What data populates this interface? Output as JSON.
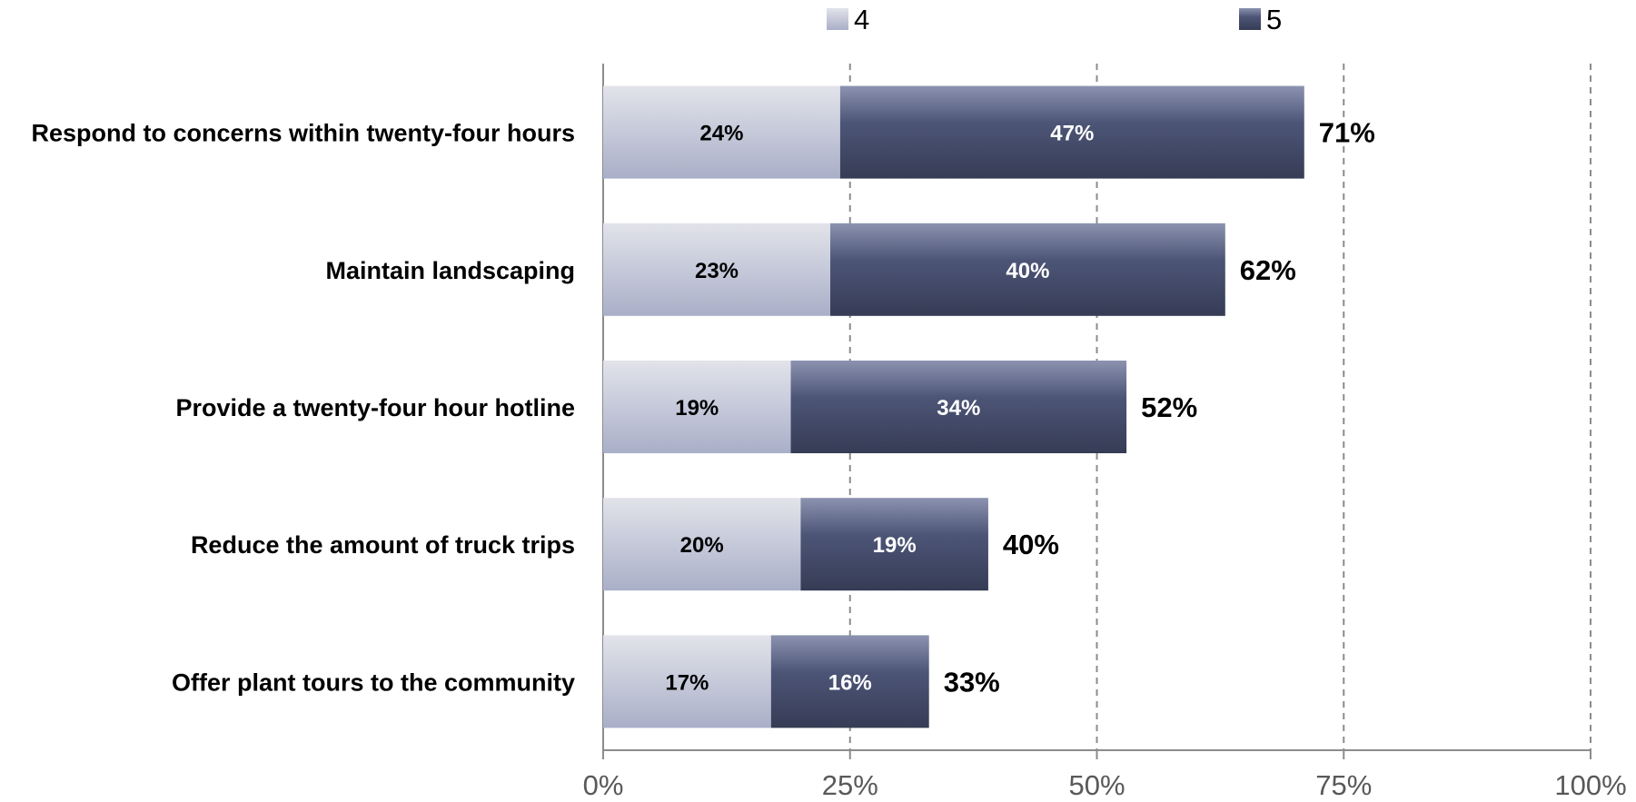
{
  "chart_data": {
    "type": "bar",
    "orientation": "horizontal",
    "stacked": true,
    "categories": [
      "Respond to concerns within twenty-four hours",
      "Maintain landscaping",
      "Provide a twenty-four hour hotline",
      "Reduce the amount of truck trips",
      "Offer plant tours to the community"
    ],
    "series": [
      {
        "name": "4",
        "values": [
          24,
          23,
          19,
          20,
          17
        ],
        "labels": [
          "24%",
          "23%",
          "19%",
          "20%",
          "17%"
        ],
        "color": "#b9bed2"
      },
      {
        "name": "5",
        "values": [
          47,
          40,
          34,
          19,
          16
        ],
        "labels": [
          "47%",
          "40%",
          "34%",
          "19%",
          "16%"
        ],
        "color": "#4a5170"
      }
    ],
    "totals": [
      71,
      62,
      52,
      40,
      33
    ],
    "total_labels": [
      "71%",
      "62%",
      "52%",
      "40%",
      "33%"
    ],
    "xlim": [
      0,
      100
    ],
    "xticks": [
      0,
      25,
      50,
      75,
      100
    ],
    "xtick_labels": [
      "0%",
      "25%",
      "50%",
      "75%",
      "100%"
    ],
    "grid": "vertical dashed",
    "legend_position": "top"
  }
}
